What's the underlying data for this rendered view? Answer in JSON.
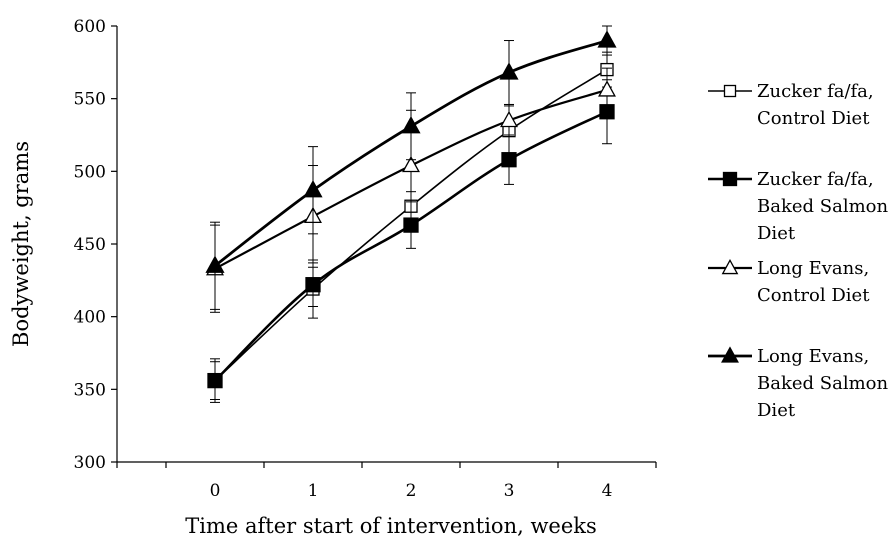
{
  "chart_data": {
    "type": "line",
    "title": "",
    "xlabel": "Time after start of intervention, weeks",
    "ylabel": "Bodyweight, grams",
    "x": [
      0,
      1,
      2,
      3,
      4
    ],
    "xlim": [
      -1,
      4.5
    ],
    "ylim": [
      300,
      600
    ],
    "yticks": [
      300,
      350,
      400,
      450,
      500,
      550,
      600
    ],
    "grid": false,
    "legend_position": "right",
    "series": [
      {
        "name_lines": [
          "Zucker fa/fa,",
          "Control Diet"
        ],
        "marker": "square-open",
        "values": [
          356,
          419,
          476,
          528,
          570
        ],
        "errors": [
          15,
          20,
          10,
          18,
          12
        ]
      },
      {
        "name_lines": [
          "Zucker fa/fa,",
          "Baked Salmon",
          "Diet"
        ],
        "marker": "square-filled",
        "values": [
          356,
          422,
          463,
          508,
          541
        ],
        "errors": [
          13,
          15,
          16,
          17,
          22
        ]
      },
      {
        "name_lines": [
          "Long Evans,",
          "Control Diet"
        ],
        "marker": "triangle-open",
        "values": [
          433,
          469,
          504,
          535,
          556
        ],
        "errors": [
          30,
          35,
          38,
          10,
          15
        ]
      },
      {
        "name_lines": [
          "Long Evans,",
          "Baked Salmon",
          "Diet"
        ],
        "marker": "triangle-filled",
        "values": [
          435,
          487,
          531,
          568,
          590
        ],
        "errors": [
          30,
          30,
          23,
          22,
          10
        ]
      }
    ]
  }
}
